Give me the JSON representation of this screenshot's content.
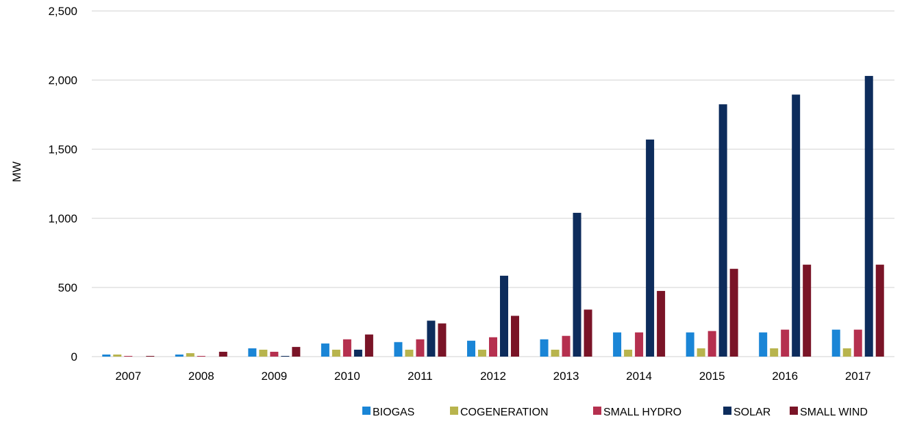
{
  "chart_data": {
    "type": "bar",
    "title": "",
    "xlabel": "",
    "ylabel": "MW",
    "ylim": [
      0,
      2500
    ],
    "yticks": [
      0,
      500,
      1000,
      1500,
      2000,
      2500
    ],
    "ytick_labels": [
      "0",
      "500",
      "1,000",
      "1,500",
      "2,000",
      "2,500"
    ],
    "grid": true,
    "legend_position": "bottom-right",
    "categories": [
      "2007",
      "2008",
      "2009",
      "2010",
      "2011",
      "2012",
      "2013",
      "2014",
      "2015",
      "2016",
      "2017"
    ],
    "series": [
      {
        "name": "BIOGAS",
        "color": "#1a85d6",
        "values": [
          15,
          15,
          60,
          95,
          105,
          115,
          125,
          175,
          175,
          175,
          195
        ]
      },
      {
        "name": "COGENERATION",
        "color": "#b8b44d",
        "values": [
          15,
          25,
          50,
          50,
          50,
          50,
          50,
          50,
          60,
          60,
          60
        ]
      },
      {
        "name": "SMALL HYDRO",
        "color": "#b5304f",
        "values": [
          5,
          5,
          35,
          125,
          125,
          140,
          150,
          175,
          185,
          195,
          195
        ]
      },
      {
        "name": "SOLAR",
        "color": "#0d2c5c",
        "values": [
          0,
          0,
          5,
          50,
          260,
          585,
          1040,
          1570,
          1825,
          1895,
          2030
        ]
      },
      {
        "name": "SMALL WIND",
        "color": "#7a1427",
        "values": [
          5,
          35,
          70,
          160,
          240,
          295,
          340,
          475,
          635,
          665,
          665
        ]
      }
    ]
  }
}
